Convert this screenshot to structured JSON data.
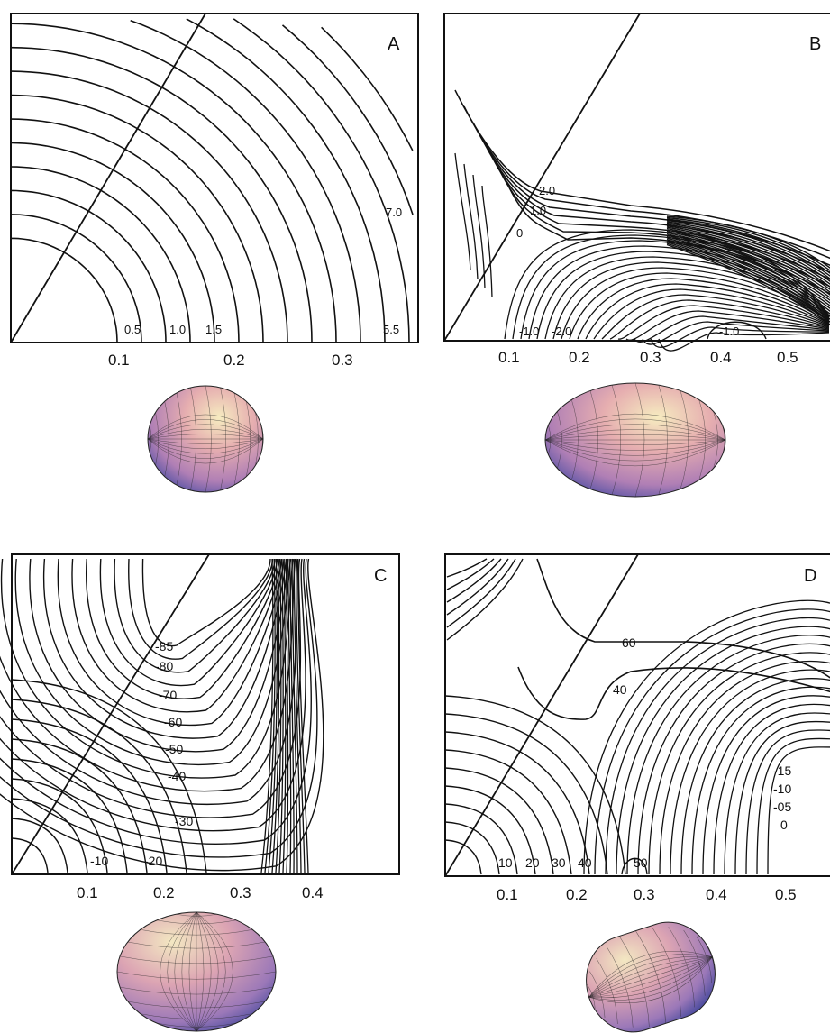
{
  "chart_data": [
    {
      "type": "contour",
      "panel_label": "A",
      "x_ticks": [
        "0.1",
        "0.2",
        "0.3"
      ],
      "xlim": [
        0,
        0.36
      ],
      "contour_labels": [
        "0.5",
        "1.0",
        "1.5",
        "5.5",
        "7.0"
      ],
      "levels": [
        0.5,
        1.0,
        1.5,
        2.0,
        2.5,
        3.0,
        3.5,
        4.0,
        4.5,
        5.0,
        5.5,
        6.0,
        6.5,
        7.0,
        7.5
      ],
      "shape": "oblate"
    },
    {
      "type": "contour",
      "panel_label": "B",
      "x_ticks": [
        "0.1",
        "0.2",
        "0.3",
        "0.4",
        "0.5"
      ],
      "xlim": [
        0,
        0.56
      ],
      "contour_labels": [
        "2.0",
        "1.0",
        "0",
        "-1.0",
        "-2.0",
        "-1.0"
      ],
      "shape": "prolate"
    },
    {
      "type": "contour",
      "panel_label": "C",
      "x_ticks": [
        "0.1",
        "0.2",
        "0.3",
        "0.4"
      ],
      "xlim": [
        0,
        0.56
      ],
      "contour_labels": [
        "-85",
        "-80",
        "-70",
        "-60",
        "-50",
        "-40",
        "-30",
        "-10",
        "-20"
      ],
      "shape": "oblate"
    },
    {
      "type": "contour",
      "panel_label": "D",
      "x_ticks": [
        "0.1",
        "0.2",
        "0.3",
        "0.4",
        "0.5"
      ],
      "xlim": [
        0,
        0.56
      ],
      "contour_labels": [
        "60",
        "40",
        "10",
        "20",
        "30",
        "40",
        "50",
        "-15",
        "-10",
        "-05",
        "0"
      ],
      "shape": "prolate"
    }
  ],
  "colors": {
    "line": "#111111",
    "sphere_light": "#f3e3b0",
    "sphere_mid": "#d98fa0",
    "sphere_dark": "#3a4fa8"
  }
}
